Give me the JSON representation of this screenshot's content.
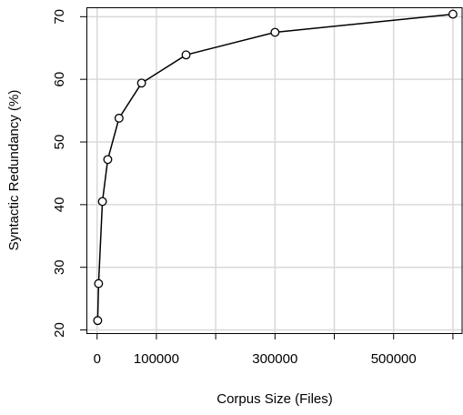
{
  "chart_data": {
    "type": "line",
    "title": "",
    "xlabel": "Corpus Size (Files)",
    "ylabel": "Syntactic Redundancy (%)",
    "xlim": [
      -18000,
      617000
    ],
    "ylim": [
      19.5,
      71.5
    ],
    "x_ticks": [
      0,
      100000,
      200000,
      300000,
      400000,
      500000,
      600000
    ],
    "x_tick_labels": [
      "0",
      "100000",
      "",
      "300000",
      "",
      "500000",
      ""
    ],
    "y_ticks": [
      20,
      30,
      40,
      50,
      60,
      70
    ],
    "y_tick_labels": [
      "20",
      "30",
      "40",
      "50",
      "60",
      "70"
    ],
    "grid": true,
    "legend": "none",
    "series": [
      {
        "x": [
          1000,
          2500,
          9000,
          18000,
          37000,
          75000,
          150000,
          300000,
          600000
        ],
        "y": [
          21.5,
          27.4,
          40.5,
          47.2,
          53.8,
          59.4,
          63.9,
          67.5,
          70.4
        ]
      }
    ],
    "colors": {
      "line": "#000000",
      "marker_stroke": "#000000",
      "marker_fill": "#ffffff",
      "grid": "#d9d9d9",
      "frame": "#000000",
      "background": "#ffffff"
    }
  }
}
